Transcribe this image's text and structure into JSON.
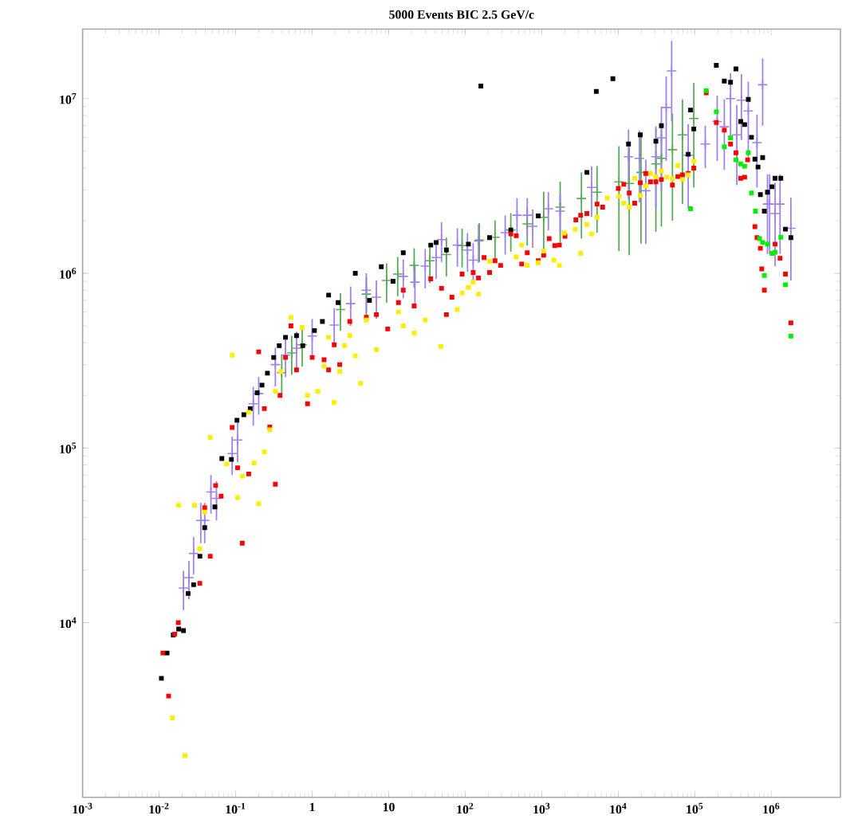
{
  "chart_data": {
    "type": "scatter",
    "title": "5000 Events BIC 2.5 GeV/c",
    "log": "xy",
    "xlim": [
      0.001,
      8000000
    ],
    "ylim": [
      1000,
      25000000
    ],
    "xticks": [
      {
        "value": 0.001,
        "label": "10$^{-3}$"
      },
      {
        "value": 0.01,
        "label": "10$^{-2}$"
      },
      {
        "value": 0.1,
        "label": "10$^{-1}$"
      },
      1,
      10,
      {
        "value": 100,
        "label": "10$^{2}$"
      },
      {
        "value": 1000,
        "label": "10$^{3}$"
      },
      {
        "value": 10000,
        "label": "10$^{4}$"
      },
      {
        "value": 100000,
        "label": "10$^{5}$"
      },
      {
        "value": 1000000,
        "label": "10$^{6}$"
      }
    ],
    "yticks": [
      {
        "value": 10000,
        "label": "10$^{4}$"
      },
      {
        "value": 100000,
        "label": "10$^{5}$"
      },
      {
        "value": 1000000,
        "label": "10$^{6}$"
      },
      {
        "value": 10000000,
        "label": "10$^{7}$"
      }
    ],
    "series": [
      {
        "color": "#9f80f0",
        "marker": "cross",
        "x": [
          0.0208,
          0.0245,
          0.0282,
          0.035,
          0.0394,
          0.0475,
          0.0561,
          0.09,
          0.106,
          0.17,
          0.2,
          0.33,
          0.448,
          0.624,
          1.0,
          1.94,
          3.18,
          5.1,
          6.9,
          15.5,
          22,
          30,
          41.7,
          49,
          79,
          107,
          127,
          149,
          333,
          475,
          646,
          762,
          1220,
          1740,
          4480,
          13600,
          18900,
          22900,
          31000,
          36600,
          42300,
          49800,
          82000,
          137000,
          196000,
          243000,
          293000,
          354000,
          407000,
          500000,
          770000,
          650000,
          890000,
          950000,
          1120000,
          1300000,
          1800000
        ],
        "values": [
          15800,
          18100,
          24900,
          38500,
          38500,
          56000,
          51500,
          93000,
          111000,
          179000,
          205000,
          300000,
          340000,
          373000,
          437000,
          505000,
          670000,
          800000,
          730000,
          960000,
          890000,
          1100000,
          1230000,
          1560000,
          1450000,
          1360000,
          1190000,
          1530000,
          1710000,
          2150000,
          2150000,
          1860000,
          2340000,
          2270000,
          3100000,
          4650000,
          4550000,
          2970000,
          4650000,
          5960000,
          8900000,
          14400000,
          4740000,
          5500000,
          7400000,
          6900000,
          10000000,
          6200000,
          9800000,
          8500000,
          12000000,
          5600000,
          2490000,
          2490000,
          2200000,
          2490000,
          1810000
        ],
        "errors": [
          4000,
          4500,
          6000,
          10000,
          10000,
          14000,
          13000,
          23000,
          28000,
          45000,
          50000,
          75000,
          85000,
          90000,
          110000,
          125000,
          170000,
          200000,
          180000,
          240000,
          220000,
          280000,
          300000,
          400000,
          360000,
          340000,
          300000,
          380000,
          430000,
          540000,
          540000,
          460000,
          580000,
          570000,
          1000000,
          2000000,
          2000000,
          1500000,
          2300000,
          3000000,
          4500000,
          7000000,
          2400000,
          1500000,
          3000000,
          3000000,
          4000000,
          3000000,
          4000000,
          4000000,
          5000000,
          2500000,
          1200000,
          1200000,
          1100000,
          1200000,
          900000
        ]
      },
      {
        "color": "#55aa55",
        "marker": "cross",
        "x": [
          0.4,
          0.54,
          0.74,
          2.34,
          5.1,
          9.4,
          13.1,
          21.5,
          34.5,
          56.7,
          91,
          153,
          245,
          394,
          646,
          1060,
          1740,
          3300,
          5280,
          10200,
          13900,
          19800,
          31000,
          36600,
          51000,
          69000,
          97000
        ],
        "values": [
          270000,
          350000,
          390000,
          620000,
          760000,
          910000,
          990000,
          1110000,
          1180000,
          1280000,
          1440000,
          1550000,
          1610000,
          1770000,
          1920000,
          2090000,
          2390000,
          2680000,
          2910000,
          3340000,
          3270000,
          3780000,
          4230000,
          4550000,
          5100000,
          6200000,
          7700000
        ],
        "errors": [
          68000,
          88000,
          98000,
          150000,
          190000,
          230000,
          250000,
          280000,
          300000,
          320000,
          360000,
          390000,
          400000,
          440000,
          480000,
          840000,
          960000,
          1100000,
          1200000,
          2000000,
          2000000,
          2300000,
          2500000,
          2700000,
          3100000,
          3700000,
          4600000
        ]
      },
      {
        "color": "#000000",
        "marker": "square",
        "x": [
          0.0107,
          0.0127,
          0.0153,
          0.018,
          0.0208,
          0.0239,
          0.0282,
          0.0341,
          0.0394,
          0.0535,
          0.066,
          0.088,
          0.104,
          0.128,
          0.155,
          0.191,
          0.221,
          0.26,
          0.314,
          0.371,
          0.448,
          0.624,
          0.753,
          1.07,
          1.36,
          1.64,
          2.18,
          3.66,
          5.6,
          8.0,
          11.4,
          15.5,
          35.4,
          41.7,
          56.7,
          110,
          160,
          208,
          394,
          900,
          3890,
          5160,
          8500,
          13600,
          19400,
          31000,
          36600,
          82000,
          88000,
          97000,
          191000,
          243000,
          293000,
          345000,
          398000,
          448000,
          500000,
          550000,
          610000,
          670000,
          720000,
          770000,
          810000,
          890000,
          1020000,
          1120000,
          1330000,
          1530000,
          1800000
        ],
        "values": [
          4800,
          6700,
          8500,
          9200,
          9000,
          14700,
          16500,
          24000,
          35000,
          46000,
          87000,
          86000,
          144000,
          155000,
          168000,
          207000,
          229000,
          268000,
          330000,
          385000,
          430000,
          440000,
          385000,
          470000,
          530000,
          750000,
          680000,
          1000000,
          700000,
          1090000,
          900000,
          1310000,
          1450000,
          1500000,
          1360000,
          1470000,
          11800000,
          1600000,
          1770000,
          2130000,
          3780000,
          11000000,
          13000000,
          5500000,
          6200000,
          5700000,
          7000000,
          4800000,
          8600000,
          6700000,
          15500000,
          12600000,
          12400000,
          14800000,
          7400000,
          7100000,
          9900000,
          6000000,
          4500000,
          4060000,
          2820000,
          4600000,
          2270000,
          2910000,
          3130000,
          3500000,
          3500000,
          1790000,
          1600000
        ]
      },
      {
        "color": "#ff0000",
        "marker": "square",
        "x": [
          0.0112,
          0.0133,
          0.016,
          0.0178,
          0.034,
          0.0465,
          0.0646,
          0.0547,
          0.0394,
          0.122,
          0.148,
          0.106,
          0.33,
          0.09,
          0.279,
          0.237,
          0.2,
          0.38,
          0.528,
          0.448,
          0.624,
          0.87,
          1.0,
          1.43,
          1.64,
          1.94,
          2.29,
          3.1,
          5.1,
          6.9,
          9.7,
          13.4,
          21.5,
          15.5,
          35.4,
          49,
          56.7,
          67,
          91,
          127,
          149,
          208,
          176,
          245,
          290,
          547,
          646,
          900,
          1060,
          1250,
          1480,
          1700,
          2010,
          464,
          394,
          2790,
          3220,
          3890,
          5280,
          6240,
          10000,
          11800,
          13900,
          16400,
          19400,
          22900,
          26400,
          31000,
          36600,
          51000,
          60000,
          69000,
          82000,
          97000,
          141000,
          191000,
          243000,
          293000,
          345000,
          490000,
          398000,
          448000,
          610000,
          650000,
          720000,
          750000,
          810000,
          1120000,
          1300000,
          1530000,
          1800000
        ],
        "values": [
          6700,
          3800,
          8600,
          10000,
          16800,
          24000,
          53000,
          61000,
          45500,
          28500,
          71000,
          77000,
          62000,
          131000,
          132000,
          168000,
          355000,
          200000,
          500000,
          330000,
          280000,
          179000,
          330000,
          320000,
          280000,
          390000,
          300000,
          530000,
          560000,
          580000,
          480000,
          680000,
          650000,
          800000,
          930000,
          820000,
          580000,
          730000,
          990000,
          1010000,
          940000,
          1010000,
          1230000,
          1180000,
          1110000,
          1130000,
          1310000,
          1180000,
          1270000,
          1580000,
          1440000,
          1450000,
          1630000,
          1640000,
          1680000,
          2020000,
          2150000,
          2200000,
          2490000,
          2390000,
          3060000,
          3230000,
          2880000,
          2520000,
          3300000,
          3730000,
          3340000,
          3340000,
          3440000,
          3200000,
          3580000,
          3660000,
          3730000,
          4000000,
          10800000,
          7300000,
          6600000,
          5500000,
          4900000,
          4460000,
          3500000,
          3550000,
          1850000,
          1600000,
          1390000,
          1060000,
          800000,
          1470000,
          1220000,
          990000,
          520000
        ]
      },
      {
        "color": "#ffee00",
        "marker": "square",
        "x": [
          0.0218,
          0.0149,
          0.018,
          0.029,
          0.034,
          0.0465,
          0.0394,
          0.076,
          0.106,
          0.122,
          0.09,
          0.2,
          0.174,
          0.237,
          0.279,
          0.148,
          0.33,
          0.389,
          0.528,
          0.736,
          0.87,
          1.18,
          1.43,
          1.94,
          2.29,
          1.64,
          2.64,
          3.1,
          3.66,
          4.3,
          5.1,
          6.9,
          13.4,
          15.5,
          21.5,
          30,
          48,
          79,
          91,
          110,
          127,
          149,
          208,
          464,
          547,
          646,
          900,
          1060,
          1440,
          1700,
          3220,
          2730,
          1960,
          3890,
          4480,
          5280,
          7180,
          10200,
          11800,
          13900,
          16400,
          19400,
          22900,
          26400,
          31000,
          36600,
          43000,
          51000,
          60000,
          69000,
          82000,
          97000
        ],
        "values": [
          1730,
          2850,
          47000,
          47000,
          26500,
          115000,
          43000,
          81000,
          52000,
          69000,
          340000,
          48000,
          82000,
          95000,
          127000,
          160000,
          211000,
          274000,
          560000,
          490000,
          200000,
          211000,
          294000,
          182000,
          274000,
          430000,
          385000,
          440000,
          337000,
          234000,
          540000,
          366000,
          600000,
          500000,
          455000,
          540000,
          381000,
          620000,
          770000,
          830000,
          890000,
          760000,
          1170000,
          1240000,
          1450000,
          1110000,
          1150000,
          1340000,
          1190000,
          1110000,
          1300000,
          1790000,
          1700000,
          1900000,
          1680000,
          2090000,
          2700000,
          2760000,
          2520000,
          2390000,
          3500000,
          2790000,
          3160000,
          3730000,
          3580000,
          3850000,
          3550000,
          3480000,
          4140000,
          3440000,
          3660000,
          4370000
        ]
      },
      {
        "color": "#00ee00",
        "marker": "square",
        "x": [
          88000,
          141000,
          191000,
          243000,
          293000,
          345000,
          398000,
          448000,
          500000,
          550000,
          620000,
          700000,
          770000,
          890000,
          810000,
          1020000,
          1120000,
          1330000,
          1530000,
          1800000
        ],
        "values": [
          2340000,
          11100000,
          8400000,
          5300000,
          5960000,
          4460000,
          4230000,
          4100000,
          4900000,
          2880000,
          2270000,
          1580000,
          1500000,
          1470000,
          970000,
          1300000,
          1320000,
          1610000,
          860000,
          437000
        ]
      }
    ]
  }
}
